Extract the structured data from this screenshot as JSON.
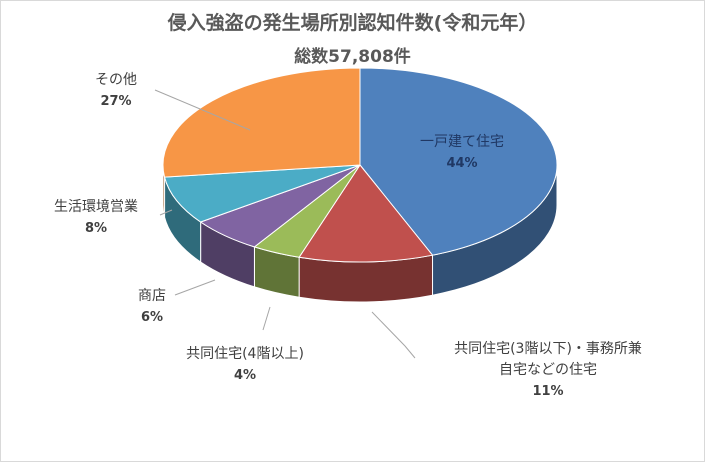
{
  "chart_data": {
    "type": "pie",
    "title": "侵入強盗の発生場所別認知件数(令和元年）",
    "subtitle": "総数57,808件",
    "slices": [
      {
        "label": "一戸建て住宅",
        "value": 44,
        "pct_label": "44%",
        "color": "#4f81bd"
      },
      {
        "label_lines": [
          "共同住宅(3階以下)・事務所兼",
          "自宅などの住宅"
        ],
        "value": 11,
        "pct_label": "11%",
        "color": "#c0504d"
      },
      {
        "label": "共同住宅(4階以上)",
        "value": 4,
        "pct_label": "4%",
        "color": "#9bbb59"
      },
      {
        "label": "商店",
        "value": 6,
        "pct_label": "6%",
        "color": "#8064a2"
      },
      {
        "label": "生活環境営業",
        "value": 8,
        "pct_label": "8%",
        "color": "#4bacc6"
      },
      {
        "label": "その他",
        "value": 27,
        "pct_label": "27%",
        "color": "#f79646"
      }
    ]
  }
}
